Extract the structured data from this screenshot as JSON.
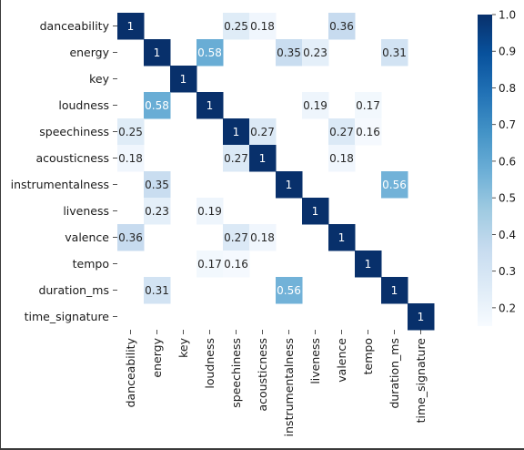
{
  "chart_data": {
    "type": "heatmap",
    "title": "",
    "xlabel": "",
    "ylabel": "",
    "labels": [
      "danceability",
      "energy",
      "key",
      "loudness",
      "speechiness",
      "acousticness",
      "instrumentalness",
      "liveness",
      "valence",
      "tempo",
      "duration_ms",
      "time_signature"
    ],
    "cells": [
      {
        "row": "danceability",
        "col": "danceability",
        "value": 1
      },
      {
        "row": "danceability",
        "col": "speechiness",
        "value": 0.25
      },
      {
        "row": "danceability",
        "col": "acousticness",
        "value": 0.18
      },
      {
        "row": "danceability",
        "col": "valence",
        "value": 0.36
      },
      {
        "row": "energy",
        "col": "energy",
        "value": 1
      },
      {
        "row": "energy",
        "col": "loudness",
        "value": 0.58
      },
      {
        "row": "energy",
        "col": "instrumentalness",
        "value": 0.35
      },
      {
        "row": "energy",
        "col": "liveness",
        "value": 0.23
      },
      {
        "row": "energy",
        "col": "duration_ms",
        "value": 0.31
      },
      {
        "row": "key",
        "col": "key",
        "value": 1
      },
      {
        "row": "loudness",
        "col": "energy",
        "value": 0.58
      },
      {
        "row": "loudness",
        "col": "loudness",
        "value": 1
      },
      {
        "row": "loudness",
        "col": "liveness",
        "value": 0.19
      },
      {
        "row": "loudness",
        "col": "tempo",
        "value": 0.17
      },
      {
        "row": "speechiness",
        "col": "danceability",
        "value": 0.25
      },
      {
        "row": "speechiness",
        "col": "speechiness",
        "value": 1
      },
      {
        "row": "speechiness",
        "col": "acousticness",
        "value": 0.27
      },
      {
        "row": "speechiness",
        "col": "valence",
        "value": 0.27
      },
      {
        "row": "speechiness",
        "col": "tempo",
        "value": 0.16
      },
      {
        "row": "acousticness",
        "col": "danceability",
        "value": 0.18
      },
      {
        "row": "acousticness",
        "col": "speechiness",
        "value": 0.27
      },
      {
        "row": "acousticness",
        "col": "acousticness",
        "value": 1
      },
      {
        "row": "acousticness",
        "col": "valence",
        "value": 0.18
      },
      {
        "row": "instrumentalness",
        "col": "energy",
        "value": 0.35
      },
      {
        "row": "instrumentalness",
        "col": "instrumentalness",
        "value": 1
      },
      {
        "row": "instrumentalness",
        "col": "duration_ms",
        "value": 0.56
      },
      {
        "row": "liveness",
        "col": "energy",
        "value": 0.23
      },
      {
        "row": "liveness",
        "col": "loudness",
        "value": 0.19
      },
      {
        "row": "liveness",
        "col": "liveness",
        "value": 1
      },
      {
        "row": "valence",
        "col": "danceability",
        "value": 0.36
      },
      {
        "row": "valence",
        "col": "speechiness",
        "value": 0.27
      },
      {
        "row": "valence",
        "col": "acousticness",
        "value": 0.18
      },
      {
        "row": "valence",
        "col": "valence",
        "value": 1
      },
      {
        "row": "tempo",
        "col": "loudness",
        "value": 0.17
      },
      {
        "row": "tempo",
        "col": "speechiness",
        "value": 0.16
      },
      {
        "row": "tempo",
        "col": "tempo",
        "value": 1
      },
      {
        "row": "duration_ms",
        "col": "energy",
        "value": 0.31
      },
      {
        "row": "duration_ms",
        "col": "instrumentalness",
        "value": 0.56
      },
      {
        "row": "duration_ms",
        "col": "duration_ms",
        "value": 1
      },
      {
        "row": "time_signature",
        "col": "time_signature",
        "value": 1
      }
    ],
    "colormap": "Blues",
    "colorbar": {
      "range": [
        0.15,
        1.0
      ],
      "ticks": [
        0.2,
        0.3,
        0.4,
        0.5,
        0.6,
        0.7,
        0.8,
        0.9,
        1.0
      ],
      "tick_labels": [
        "0.2",
        "0.3",
        "0.4",
        "0.5",
        "0.6",
        "0.7",
        "0.8",
        "0.9",
        "1.0"
      ]
    }
  }
}
